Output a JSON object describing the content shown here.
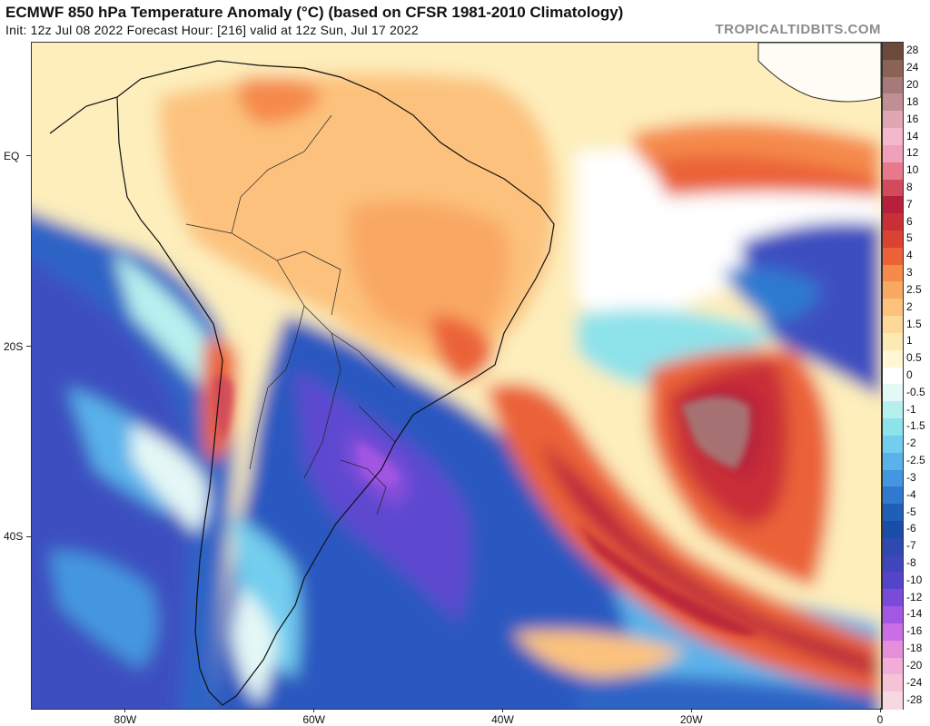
{
  "header": {
    "title": "ECMWF 850 hPa Temperature Anomaly (°C) (based on CFSR 1981-2010 Climatology)",
    "subtitle": "Init: 12z Jul 08 2022   Forecast Hour: [216]   valid at 12z Sun, Jul 17 2022",
    "watermark": "TROPICALTIDBITS.COM"
  },
  "map": {
    "region": "South America and South Atlantic",
    "lon_range": [
      -90,
      0
    ],
    "lat_range": [
      -58,
      12
    ],
    "x_ticks": [
      {
        "lon": -80,
        "label": "80W"
      },
      {
        "lon": -60,
        "label": "60W"
      },
      {
        "lon": -40,
        "label": "40W"
      },
      {
        "lon": -20,
        "label": "20W"
      },
      {
        "lon": 0,
        "label": "0"
      }
    ],
    "y_ticks": [
      {
        "lat": 0,
        "label": "EQ"
      },
      {
        "lat": -20,
        "label": "20S"
      },
      {
        "lat": -40,
        "label": "40S"
      }
    ]
  },
  "colorbar": {
    "levels": [
      {
        "label": "28",
        "color": "#6b4a3c"
      },
      {
        "label": "24",
        "color": "#8a6355"
      },
      {
        "label": "20",
        "color": "#a57a78"
      },
      {
        "label": "18",
        "color": "#c08f96"
      },
      {
        "label": "16",
        "color": "#e0a6b4"
      },
      {
        "label": "14",
        "color": "#f3b8cc"
      },
      {
        "label": "12",
        "color": "#f0a0b8"
      },
      {
        "label": "10",
        "color": "#e67a8c"
      },
      {
        "label": "8",
        "color": "#d24a5c"
      },
      {
        "label": "7",
        "color": "#b7203a"
      },
      {
        "label": "6",
        "color": "#c92f37"
      },
      {
        "label": "5",
        "color": "#dc4233"
      },
      {
        "label": "4",
        "color": "#eb6238"
      },
      {
        "label": "3",
        "color": "#f58a4b"
      },
      {
        "label": "2.5",
        "color": "#f9a863"
      },
      {
        "label": "2",
        "color": "#fcc27d"
      },
      {
        "label": "1.5",
        "color": "#fdd898"
      },
      {
        "label": "1",
        "color": "#fde9b4"
      },
      {
        "label": "0.5",
        "color": "#fef6d4"
      },
      {
        "label": "0",
        "color": "#ffffff"
      },
      {
        "label": "-0.5",
        "color": "#e4f8f6"
      },
      {
        "label": "-1",
        "color": "#b6f0ee"
      },
      {
        "label": "-1.5",
        "color": "#8ee2ea"
      },
      {
        "label": "-2",
        "color": "#72cdee"
      },
      {
        "label": "-2.5",
        "color": "#5ab2ea"
      },
      {
        "label": "-3",
        "color": "#4596e0"
      },
      {
        "label": "-4",
        "color": "#2f7ad0"
      },
      {
        "label": "-5",
        "color": "#1f5fb8"
      },
      {
        "label": "-6",
        "color": "#1a4da6"
      },
      {
        "label": "-7",
        "color": "#2e4ab0"
      },
      {
        "label": "-8",
        "color": "#3f46bb"
      },
      {
        "label": "-10",
        "color": "#5444c9"
      },
      {
        "label": "-12",
        "color": "#7a4ad8"
      },
      {
        "label": "-14",
        "color": "#a457e3"
      },
      {
        "label": "-16",
        "color": "#cc6ee4"
      },
      {
        "label": "-18",
        "color": "#e58fdc"
      },
      {
        "label": "-20",
        "color": "#f1acd8"
      },
      {
        "label": "-24",
        "color": "#f5c3d6"
      },
      {
        "label": "-28",
        "color": "#f8d8e0"
      }
    ]
  }
}
